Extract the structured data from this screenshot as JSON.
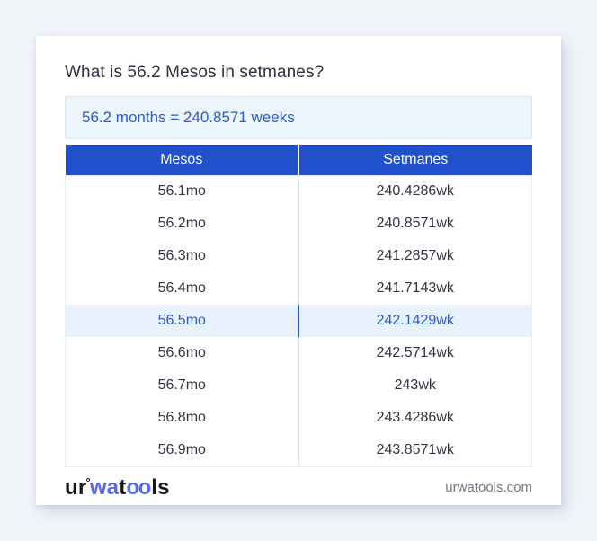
{
  "header": {
    "title": "What is 56.2 Mesos in setmanes?",
    "result": "56.2 months = 240.8571 weeks"
  },
  "table": {
    "columns": [
      "Mesos",
      "Setmanes"
    ],
    "rows": [
      {
        "mesos": "56.1mo",
        "setmanes": "240.4286wk",
        "highlighted": false
      },
      {
        "mesos": "56.2mo",
        "setmanes": "240.8571wk",
        "highlighted": false
      },
      {
        "mesos": "56.3mo",
        "setmanes": "241.2857wk",
        "highlighted": false
      },
      {
        "mesos": "56.4mo",
        "setmanes": "241.7143wk",
        "highlighted": false
      },
      {
        "mesos": "56.5mo",
        "setmanes": "242.1429wk",
        "highlighted": true
      },
      {
        "mesos": "56.6mo",
        "setmanes": "242.5714wk",
        "highlighted": false
      },
      {
        "mesos": "56.7mo",
        "setmanes": "243wk",
        "highlighted": false
      },
      {
        "mesos": "56.8mo",
        "setmanes": "243.4286wk",
        "highlighted": false
      },
      {
        "mesos": "56.9mo",
        "setmanes": "243.8571wk",
        "highlighted": false
      }
    ]
  },
  "footer": {
    "logo": {
      "part_ur": "ur",
      "degree": "°",
      "part_wa": "wa",
      "part_t": "t",
      "part_oo": "oo",
      "part_ls": "ls"
    },
    "site": "urwatools.com"
  },
  "colors": {
    "page_background": "#f1f4f9",
    "card_background": "#ffffff",
    "header_blue": "#2150cd",
    "result_box_background": "#ecf4fc",
    "accent_text_blue": "#2a5cc8",
    "highlight_row_background": "#e8f1fc",
    "logo_blue": "#5968f0",
    "footer_text_gray": "#6e7787"
  }
}
